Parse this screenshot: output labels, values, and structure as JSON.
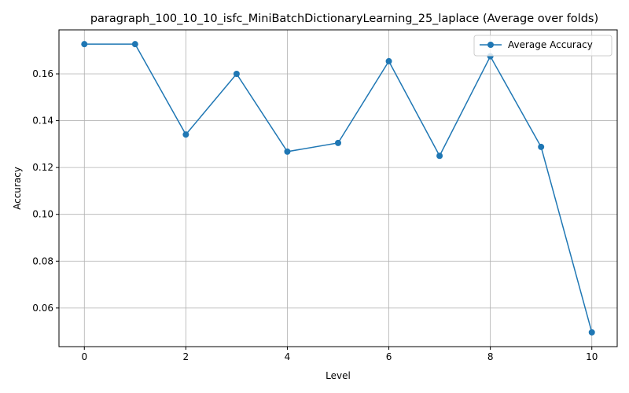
{
  "chart_data": {
    "type": "line",
    "title": "paragraph_100_10_10_isfc_MiniBatchDictionaryLearning_25_laplace (Average over folds)",
    "xlabel": "Level",
    "ylabel": "Accuracy",
    "x": [
      0,
      1,
      2,
      3,
      4,
      5,
      6,
      7,
      8,
      9,
      10
    ],
    "series": [
      {
        "name": "Average Accuracy",
        "values": [
          0.1727,
          0.1727,
          0.1341,
          0.16,
          0.1268,
          0.1305,
          0.1654,
          0.125,
          0.1675,
          0.1288,
          0.0496
        ],
        "color": "#1f77b4"
      }
    ],
    "xlim": [
      -0.5,
      10.5
    ],
    "ylim": [
      0.0435,
      0.1788
    ],
    "xticks": [
      0,
      2,
      4,
      6,
      8,
      10
    ],
    "yticks": [
      0.06,
      0.08,
      0.1,
      0.12,
      0.14,
      0.16
    ],
    "xtick_labels": [
      "0",
      "2",
      "4",
      "6",
      "8",
      "10"
    ],
    "ytick_labels": [
      "0.06",
      "0.08",
      "0.10",
      "0.12",
      "0.14",
      "0.16"
    ],
    "grid": true,
    "legend_position": "top-right",
    "grid_color": "#b0b0b0",
    "axis_color": "#000000"
  }
}
